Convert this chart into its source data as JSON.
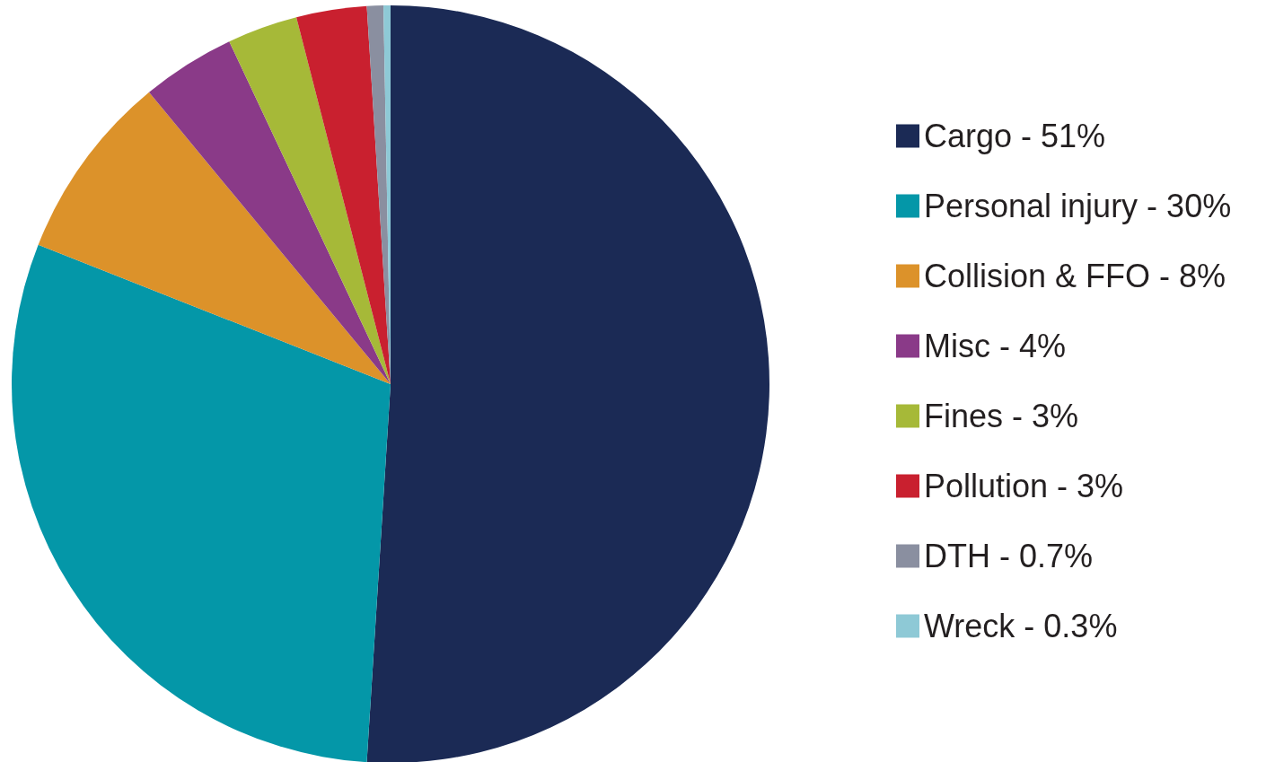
{
  "chart_data": {
    "type": "pie",
    "categories": [
      "Cargo - 51%",
      "Personal injury - 30%",
      "Collision & FFO - 8%",
      "Misc - 4%",
      "Fines - 3%",
      "Pollution - 3%",
      "DTH - 0.7%",
      "Wreck - 0.3%"
    ],
    "values": [
      51,
      30,
      8,
      4,
      3,
      3,
      0.7,
      0.3
    ],
    "colors": [
      "#1b2a55",
      "#0497a8",
      "#dc922a",
      "#8a3a88",
      "#a6b938",
      "#c9202f",
      "#8a8fa0",
      "#8ec9d6"
    ],
    "legend": "right"
  }
}
